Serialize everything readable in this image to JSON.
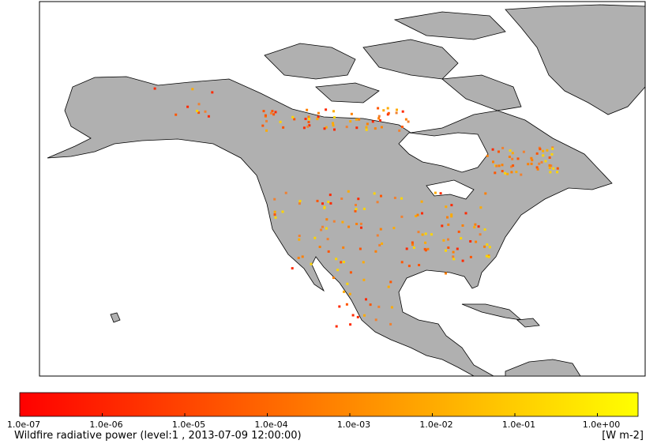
{
  "colorbar": {
    "ticks": [
      "1.0e-07",
      "1.0e-06",
      "1.0e-05",
      "1.0e-04",
      "1.0e-03",
      "1.0e-02",
      "1.0e-01",
      "1.0e+00"
    ],
    "colors": [
      "#ff0000",
      "#ff8000",
      "#ffff00"
    ],
    "title": "Wildfire radiative power (level:1 , 2013-07-09 12:00:00)",
    "units": "[W m-2]"
  }
}
